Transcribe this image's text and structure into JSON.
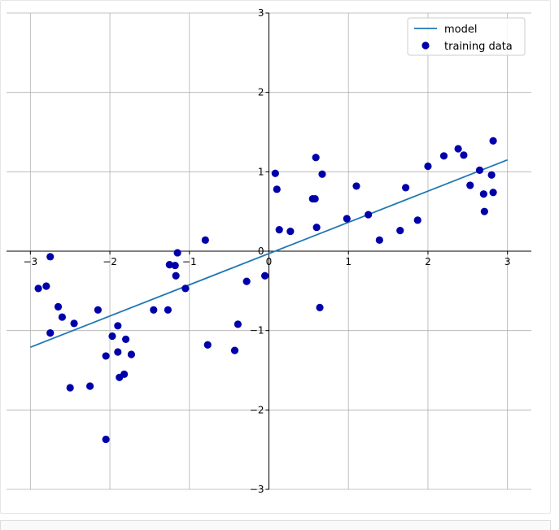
{
  "chart_data": {
    "type": "scatter",
    "xlim": [
      -3.3,
      3.3
    ],
    "ylim": [
      -3,
      3
    ],
    "xticks": [
      -3,
      -2,
      -1,
      0,
      1,
      2,
      3
    ],
    "yticks": [
      -3,
      -2,
      -1,
      0,
      1,
      2,
      3
    ],
    "xtick_labels": [
      "−3",
      "−2",
      "−1",
      "0",
      "1",
      "2",
      "3"
    ],
    "ytick_labels": [
      "−3",
      "−2",
      "−1",
      "0",
      "1",
      "2",
      "3"
    ],
    "grid": true,
    "spines": "centered",
    "legend_position": "top-right",
    "series": [
      {
        "name": "model",
        "kind": "line",
        "color": "#1f77b4",
        "x": [
          -3,
          3
        ],
        "y": [
          -1.21,
          1.15
        ]
      },
      {
        "name": "training data",
        "kind": "scatter",
        "color": "#0000aa",
        "points": [
          [
            -2.9,
            -0.47
          ],
          [
            -2.8,
            -0.44
          ],
          [
            -2.75,
            -0.07
          ],
          [
            -2.75,
            -1.03
          ],
          [
            -2.65,
            -0.7
          ],
          [
            -2.6,
            -0.83
          ],
          [
            -2.5,
            -1.72
          ],
          [
            -2.45,
            -0.91
          ],
          [
            -2.25,
            -1.7
          ],
          [
            -2.15,
            -0.74
          ],
          [
            -2.05,
            -2.37
          ],
          [
            -2.05,
            -1.32
          ],
          [
            -1.97,
            -1.07
          ],
          [
            -1.9,
            -1.27
          ],
          [
            -1.9,
            -0.94
          ],
          [
            -1.88,
            -1.59
          ],
          [
            -1.82,
            -1.55
          ],
          [
            -1.8,
            -1.11
          ],
          [
            -1.73,
            -1.3
          ],
          [
            -1.45,
            -0.74
          ],
          [
            -1.27,
            -0.74
          ],
          [
            -1.25,
            -0.17
          ],
          [
            -1.18,
            -0.18
          ],
          [
            -1.17,
            -0.31
          ],
          [
            -1.15,
            -0.02
          ],
          [
            -1.05,
            -0.47
          ],
          [
            -0.8,
            0.14
          ],
          [
            -0.77,
            -1.18
          ],
          [
            -0.43,
            -1.25
          ],
          [
            -0.39,
            -0.92
          ],
          [
            -0.28,
            -0.38
          ],
          [
            -0.05,
            -0.31
          ],
          [
            0.08,
            0.98
          ],
          [
            0.1,
            0.78
          ],
          [
            0.13,
            0.27
          ],
          [
            0.27,
            0.25
          ],
          [
            0.55,
            0.66
          ],
          [
            0.58,
            0.66
          ],
          [
            0.59,
            1.18
          ],
          [
            0.6,
            0.3
          ],
          [
            0.64,
            -0.71
          ],
          [
            0.67,
            0.97
          ],
          [
            0.98,
            0.41
          ],
          [
            1.1,
            0.82
          ],
          [
            1.25,
            0.46
          ],
          [
            1.39,
            0.14
          ],
          [
            1.65,
            0.26
          ],
          [
            1.72,
            0.8
          ],
          [
            1.87,
            0.39
          ],
          [
            2.0,
            1.07
          ],
          [
            2.2,
            1.2
          ],
          [
            2.38,
            1.29
          ],
          [
            2.45,
            1.21
          ],
          [
            2.53,
            0.83
          ],
          [
            2.65,
            1.02
          ],
          [
            2.7,
            0.72
          ],
          [
            2.71,
            0.5
          ],
          [
            2.8,
            0.96
          ],
          [
            2.82,
            0.74
          ],
          [
            2.82,
            1.39
          ]
        ]
      }
    ]
  }
}
